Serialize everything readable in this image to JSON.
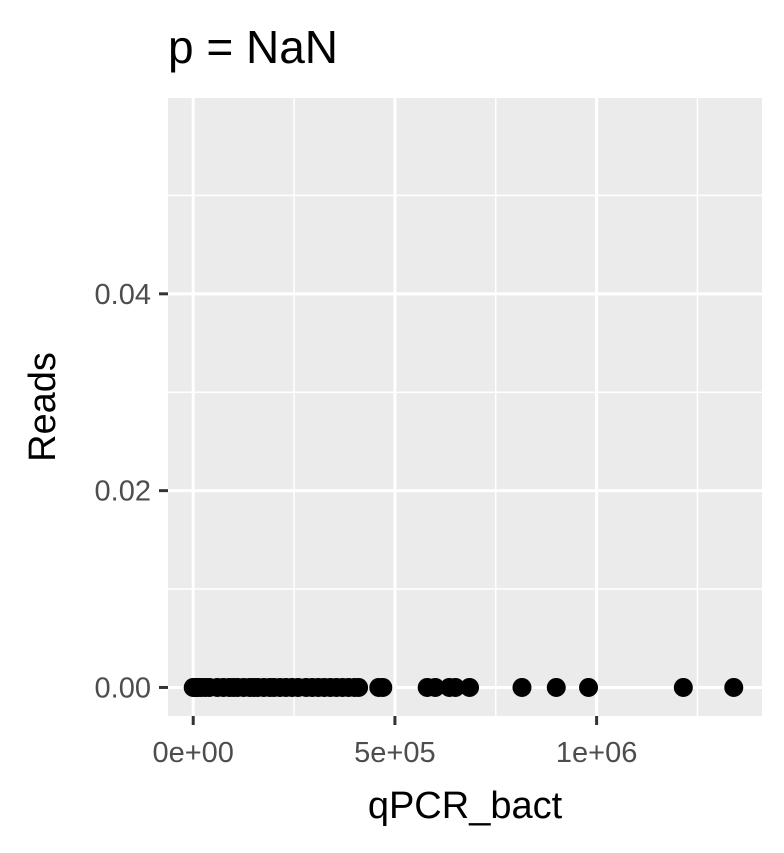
{
  "chart_data": {
    "type": "scatter",
    "title": "p = NaN",
    "xlabel": "qPCR_bact",
    "ylabel": "Reads",
    "xlim": [
      -62500,
      1410000
    ],
    "ylim": [
      -0.0029,
      0.0599
    ],
    "x_ticks": [
      {
        "value": 0,
        "label": "0e+00"
      },
      {
        "value": 500000,
        "label": "5e+05"
      },
      {
        "value": 1000000,
        "label": "1e+06"
      }
    ],
    "x_minor": [
      250000,
      750000,
      1250000
    ],
    "y_ticks": [
      {
        "value": 0,
        "label": "0.00"
      },
      {
        "value": 0.02,
        "label": "0.02"
      },
      {
        "value": 0.04,
        "label": "0.04"
      }
    ],
    "y_minor": [
      0.01,
      0.03,
      0.05
    ],
    "grid": true,
    "legend": "none",
    "series": [
      {
        "x": [
          0,
          4000,
          8000,
          12000,
          20000,
          30000,
          40000,
          60000,
          75000,
          90000,
          100000,
          110000,
          125000,
          140000,
          150000,
          160000,
          175000,
          190000,
          200000,
          215000,
          230000,
          245000,
          260000,
          280000,
          295000,
          310000,
          325000,
          340000,
          355000,
          370000,
          385000,
          400000,
          410000,
          460000,
          470000,
          580000,
          600000,
          635000,
          650000,
          685000,
          815000,
          900000,
          980000,
          1215000,
          1340000
        ],
        "y": [
          0,
          0,
          0,
          0,
          0,
          0,
          0,
          0,
          0,
          0,
          0,
          0,
          0,
          0,
          0,
          0,
          0,
          0,
          0,
          0,
          0,
          0,
          0,
          0,
          0,
          0,
          0,
          0,
          0,
          0,
          0,
          0,
          0,
          0,
          0,
          0,
          0,
          0,
          0,
          0,
          0,
          0,
          0,
          0,
          0
        ],
        "color": "#000000"
      }
    ]
  }
}
